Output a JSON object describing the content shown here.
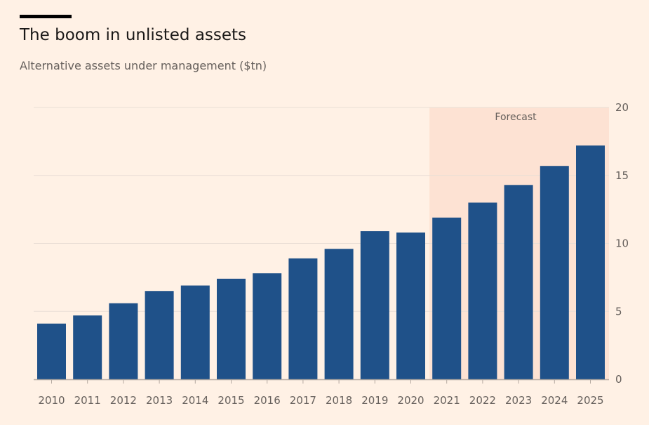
{
  "header": {
    "title": "The boom in unlisted assets",
    "subtitle": "Alternative assets under management ($tn)"
  },
  "chart_data": {
    "type": "bar",
    "title": "The boom in unlisted assets",
    "subtitle": "Alternative assets under management ($tn)",
    "xlabel": "",
    "ylabel": "",
    "categories": [
      "2010",
      "2011",
      "2012",
      "2013",
      "2014",
      "2015",
      "2016",
      "2017",
      "2018",
      "2019",
      "2020",
      "2021",
      "2022",
      "2023",
      "2024",
      "2025"
    ],
    "values": [
      4.1,
      4.7,
      5.6,
      6.5,
      6.9,
      7.4,
      7.8,
      8.9,
      9.6,
      10.9,
      10.8,
      11.9,
      13.0,
      14.3,
      15.7,
      17.2
    ],
    "ylim": [
      0,
      20
    ],
    "yticks": [
      0,
      5,
      10,
      15,
      20
    ],
    "y_axis_side": "right",
    "grid": true,
    "forecast_band": {
      "label": "Forecast",
      "from": "2021",
      "to": "2025"
    },
    "colors": {
      "bar": "#1F5189",
      "forecast_band": "#FDE2D3",
      "grid": "#E9DED5",
      "axis": "#B5AAA1",
      "tick_text": "#66605C",
      "background": "#FFF1E5"
    }
  }
}
